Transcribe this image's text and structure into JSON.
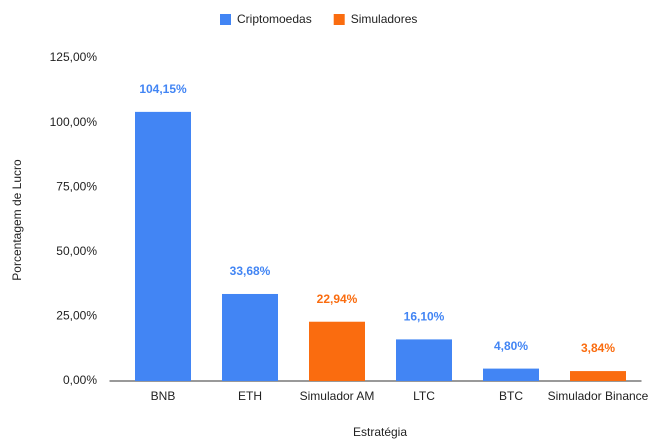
{
  "chart_data": {
    "type": "bar",
    "categories": [
      "BNB",
      "ETH",
      "Simulador AM",
      "LTC",
      "BTC",
      "Simulador Binance"
    ],
    "series": [
      {
        "name": "Criptomoedas",
        "color": "#4285f4",
        "values": [
          104.15,
          33.68,
          null,
          16.1,
          4.8,
          null
        ],
        "value_labels": [
          "104,15%",
          "33,68%",
          null,
          "16,10%",
          "4,80%",
          null
        ]
      },
      {
        "name": "Simuladores",
        "color": "#fa6c0f",
        "values": [
          null,
          null,
          22.94,
          null,
          null,
          3.84
        ],
        "value_labels": [
          null,
          null,
          "22,94%",
          null,
          null,
          "3,84%"
        ]
      }
    ],
    "ylim": [
      0,
      125
    ],
    "yticks": [
      {
        "value": 0,
        "label": "0,00%"
      },
      {
        "value": 25,
        "label": "25,00%"
      },
      {
        "value": 50,
        "label": "50,00%"
      },
      {
        "value": 75,
        "label": "75,00%"
      },
      {
        "value": 100,
        "label": "100,00%"
      },
      {
        "value": 125,
        "label": "125,00%"
      }
    ],
    "x_label": "Estratégia",
    "y_label": "Porcentagem de Lucro",
    "grid": false,
    "legend": "top"
  }
}
